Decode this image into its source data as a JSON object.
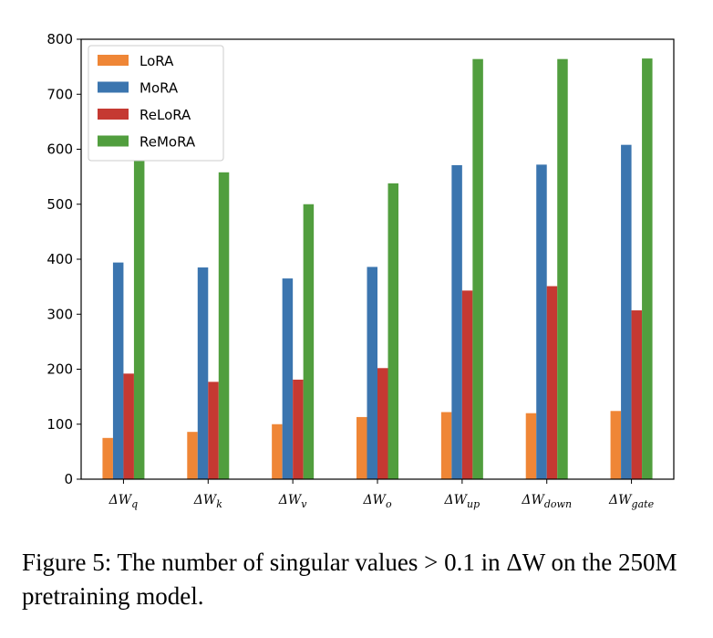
{
  "chart_data": {
    "type": "bar",
    "categories": [
      "ΔWq",
      "ΔWk",
      "ΔWv",
      "ΔWo",
      "ΔWup",
      "ΔWdown",
      "ΔWgate"
    ],
    "category_labels": [
      {
        "base": "ΔW",
        "sub": "q"
      },
      {
        "base": "ΔW",
        "sub": "k"
      },
      {
        "base": "ΔW",
        "sub": "v"
      },
      {
        "base": "ΔW",
        "sub": "o"
      },
      {
        "base": "ΔW",
        "sub": "up"
      },
      {
        "base": "ΔW",
        "sub": "down"
      },
      {
        "base": "ΔW",
        "sub": "gate"
      }
    ],
    "series": [
      {
        "name": "LoRA",
        "color": "#ef8636",
        "values": [
          75,
          86,
          100,
          113,
          122,
          120,
          124
        ]
      },
      {
        "name": "MoRA",
        "color": "#3b75af",
        "values": [
          394,
          385,
          365,
          386,
          571,
          572,
          608
        ]
      },
      {
        "name": "ReLoRA",
        "color": "#c53932",
        "values": [
          192,
          177,
          181,
          202,
          343,
          351,
          307
        ]
      },
      {
        "name": "ReMoRA",
        "color": "#519e3e",
        "values": [
          580,
          558,
          500,
          538,
          764,
          764,
          765
        ]
      }
    ],
    "ylim": [
      0,
      800
    ],
    "yticks": [
      0,
      100,
      200,
      300,
      400,
      500,
      600,
      700,
      800
    ],
    "title": "",
    "xlabel": "",
    "ylabel": "",
    "legend": "top-left",
    "grid": false
  },
  "caption": {
    "text": "Figure 5: The number of singular values > 0.1 in ΔW on the 250M pretraining model."
  }
}
